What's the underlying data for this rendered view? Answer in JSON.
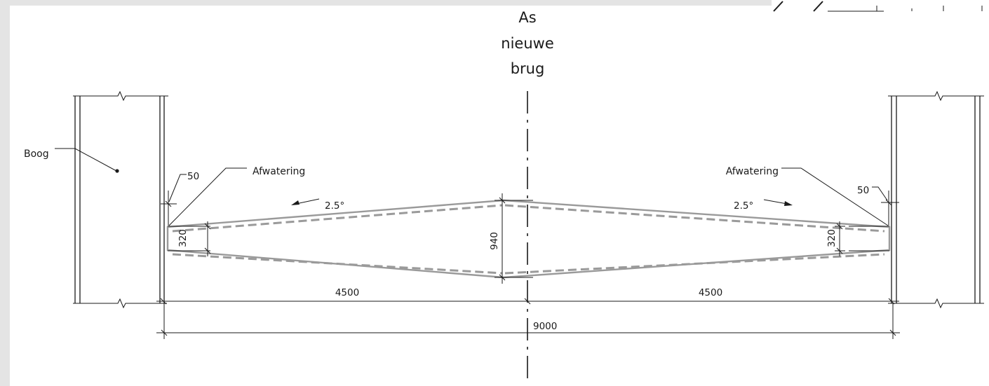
{
  "axis_label": [
    "As",
    "nieuwe",
    "brug"
  ],
  "labels": {
    "arch": "Boog",
    "drainage_left": "Afwatering",
    "drainage_right": "Afwatering",
    "slope_left": "2.5°",
    "slope_right": "2.5°"
  },
  "dimensions": {
    "left_offset": "50",
    "right_offset": "50",
    "left_depth": "320",
    "center_depth": "940",
    "right_depth": "320",
    "left_half_span": "4500",
    "right_half_span": "4500",
    "total_span": "9000"
  },
  "colors": {
    "line": "#1a1a1a",
    "deck": "#9a9a9a",
    "frame": "#e4e4e4"
  }
}
